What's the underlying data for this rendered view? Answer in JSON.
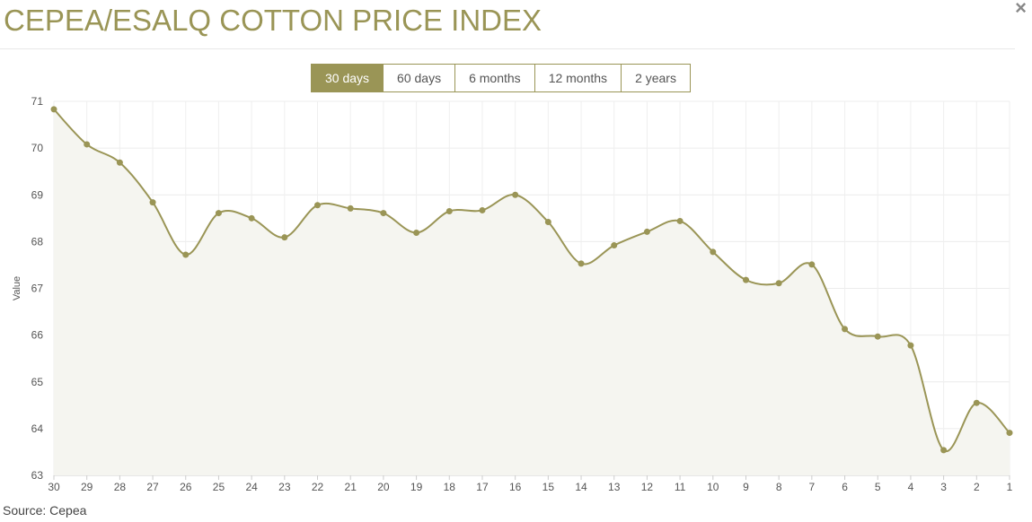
{
  "title": "CEPEA/ESALQ COTTON PRICE INDEX",
  "close_label": "×",
  "ranges": [
    {
      "label": "30 days",
      "active": true
    },
    {
      "label": "60 days",
      "active": false
    },
    {
      "label": "6 months",
      "active": false
    },
    {
      "label": "12 months",
      "active": false
    },
    {
      "label": "2 years",
      "active": false
    }
  ],
  "source": "Source: Cepea",
  "chart_data": {
    "type": "area",
    "title": "CEPEA/ESALQ COTTON PRICE INDEX",
    "xlabel": "",
    "ylabel": "Value",
    "ylim": [
      63,
      71
    ],
    "yticks": [
      "63",
      "64",
      "65",
      "66",
      "67",
      "68",
      "69",
      "70",
      "71"
    ],
    "categories": [
      "30",
      "29",
      "28",
      "27",
      "26",
      "25",
      "24",
      "23",
      "22",
      "21",
      "20",
      "19",
      "18",
      "17",
      "16",
      "15",
      "14",
      "13",
      "12",
      "11",
      "10",
      "9",
      "8",
      "7",
      "6",
      "5",
      "4",
      "3",
      "2",
      "1"
    ],
    "values": [
      70.83,
      70.08,
      69.69,
      68.84,
      67.72,
      68.61,
      68.5,
      68.09,
      68.78,
      68.71,
      68.61,
      68.19,
      68.65,
      68.67,
      69.0,
      68.42,
      67.53,
      67.92,
      68.21,
      68.44,
      67.78,
      67.18,
      67.11,
      67.51,
      66.13,
      65.97,
      65.78,
      63.54,
      64.55,
      63.91
    ],
    "color": "#9a9556",
    "fill": "#f5f5f0",
    "grid": true,
    "legend": "none"
  }
}
